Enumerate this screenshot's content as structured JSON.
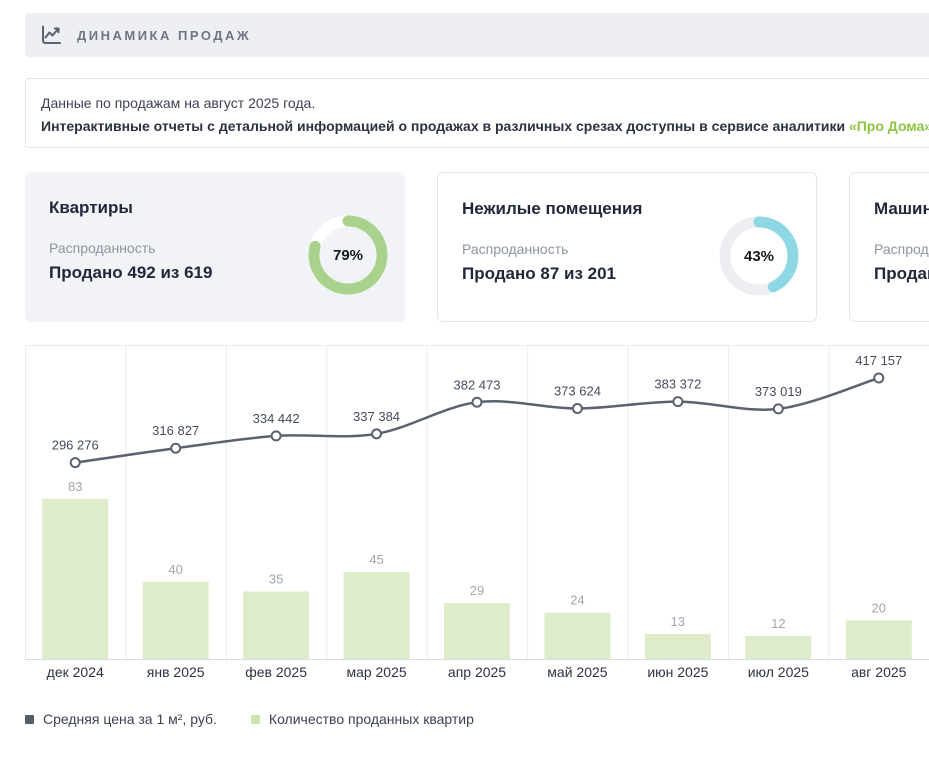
{
  "header": {
    "title": "ДИНАМИКА ПРОДАЖ"
  },
  "info": {
    "line1": "Данные по продажам на август 2025 года.",
    "line2_text": "Интерактивные отчеты с детальной информацией о продажах в различных срезах доступны в сервисе аналитики",
    "line2_link": "«Про Дома»",
    "link_color": "#8cc63f"
  },
  "cards": [
    {
      "title": "Квартиры",
      "metric_label": "Распроданность",
      "metric_value": "Продано 492 из 619",
      "percent": 79,
      "ring_color": "#a9d38c",
      "track_color": "#ffffff"
    },
    {
      "title": "Нежилые помещения",
      "metric_label": "Распроданность",
      "metric_value": "Продано 87 из 201",
      "percent": 43,
      "ring_color": "#8ed7e5",
      "track_color": "#eceef1"
    },
    {
      "title": "Машин",
      "metric_label": "Распрод",
      "metric_value": "Продан",
      "percent": null,
      "ring_color": null,
      "track_color": null
    }
  ],
  "chart_data": {
    "type": "bar+line",
    "categories": [
      "дек 2024",
      "янв 2025",
      "фев 2025",
      "мар 2025",
      "апр 2025",
      "май 2025",
      "июн 2025",
      "июл 2025",
      "авг 2025"
    ],
    "series": [
      {
        "name": "Средняя цена за 1 м², руб.",
        "type": "line",
        "values": [
          296276,
          316827,
          334442,
          337384,
          382473,
          373624,
          383372,
          373019,
          417157
        ],
        "color": "#5b6170",
        "swatch_color": "#565c68"
      },
      {
        "name": "Количество проданных квартир",
        "type": "bar",
        "values": [
          83,
          40,
          35,
          45,
          29,
          24,
          13,
          12,
          20
        ],
        "color": "#dfeccb",
        "swatch_color": "#cfe4ad"
      }
    ],
    "grid": "vertical",
    "legend_position": "bottom",
    "value_label_format": "space-thousands"
  },
  "colors": {
    "grid_line": "#eaecf0",
    "axis_line": "#d9dce1",
    "bar_value_label": "#a0a6b1",
    "line_value_label": "#454c5c",
    "category_label": "#2c3342"
  }
}
